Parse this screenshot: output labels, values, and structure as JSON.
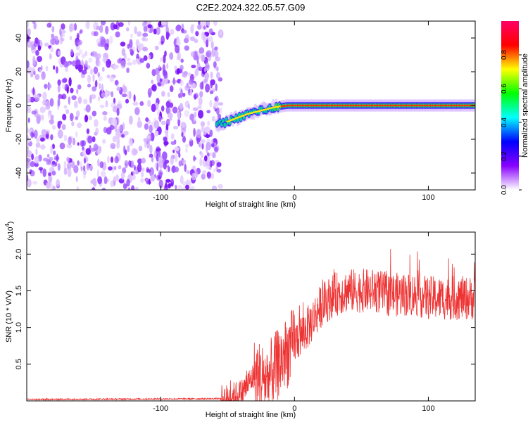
{
  "title": "C2E2.2024.322.05.57.G09",
  "chart_data": [
    {
      "type": "heatmap",
      "xlabel": "Height of straight line (km)",
      "ylabel": "Frequency (Hz)",
      "xlim": [
        -200,
        135
      ],
      "ylim": [
        -50,
        50
      ],
      "xticks": [
        -100,
        0,
        100
      ],
      "xtick_labels": [
        "-100",
        "0",
        "100"
      ],
      "yticks": [
        -40,
        -20,
        0,
        20,
        40
      ],
      "ytick_labels": [
        "-40",
        "-20",
        "0",
        "20",
        "40"
      ],
      "noise_region_x": [
        -200,
        -55
      ],
      "signal_track": {
        "x": [
          -55,
          -45,
          -35,
          -25,
          -15,
          -5,
          0,
          135
        ],
        "y": [
          -11,
          -8,
          -5,
          -3,
          -1,
          0,
          0,
          0
        ]
      },
      "colorbar": {
        "label": "Normalized spectral amplitude",
        "range": [
          0,
          1
        ],
        "ticks": [
          0.0,
          0.2,
          0.4,
          0.6,
          0.8
        ],
        "tick_labels": [
          "0.0",
          "0.2",
          "0.4",
          "0.6",
          "0.8"
        ],
        "colors": [
          "#ffffff",
          "#8800ff",
          "#0000ff",
          "#00ffff",
          "#00ff00",
          "#ffff00",
          "#ff0000",
          "#ff0066"
        ]
      },
      "grid": false
    },
    {
      "type": "line",
      "xlabel": "Height of straight line (km)",
      "ylabel": "SNR (10 * V/V)",
      "multiplier": "(x10",
      "multiplier_exp": "4",
      "xlim": [
        -200,
        135
      ],
      "ylim": [
        0,
        2.3
      ],
      "xticks": [
        -100,
        0,
        100
      ],
      "xtick_labels": [
        "-100",
        "0",
        "100"
      ],
      "yticks": [
        0.5,
        1.0,
        1.5,
        2.0
      ],
      "ytick_labels": [
        "0.5",
        "1.0",
        "1.5",
        "2.0"
      ],
      "series": [
        {
          "color": "#ee3333",
          "envelope": {
            "x": [
              -200,
              -50,
              -40,
              -30,
              -20,
              -10,
              0,
              10,
              20,
              30,
              40,
              50,
              60,
              70,
              80,
              90,
              100,
              110,
              120,
              135
            ],
            "y": [
              0.02,
              0.03,
              0.1,
              0.35,
              0.3,
              0.55,
              0.8,
              1.0,
              1.3,
              1.45,
              1.5,
              1.5,
              1.5,
              1.45,
              1.45,
              1.45,
              1.4,
              1.4,
              1.4,
              1.4
            ]
          }
        }
      ],
      "grid": false
    }
  ]
}
